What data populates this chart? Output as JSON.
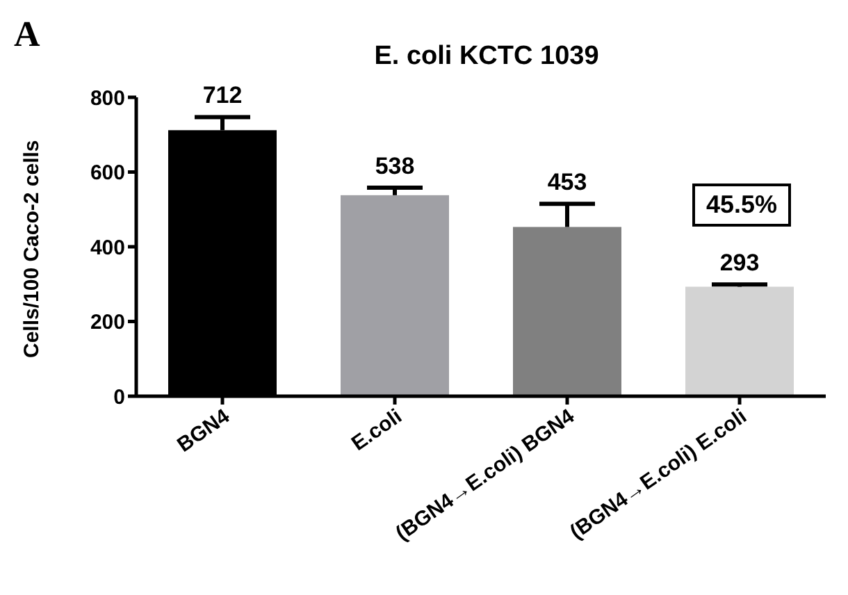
{
  "chart_data": {
    "type": "bar",
    "title": "E. coli KCTC 1039",
    "ylabel": "Cells/100 Caco-2 cells",
    "categories": [
      "BGN4",
      "E.coli",
      "(BGN4→E.coli) BGN4",
      "(BGN4→E.coli) E.coli"
    ],
    "values": [
      712,
      538,
      453,
      293
    ],
    "colors": [
      "#000000",
      "#a0a0a5",
      "#808080",
      "#d3d3d3"
    ],
    "errors": [
      [
        712,
        747
      ],
      [
        538,
        558
      ],
      [
        453,
        515
      ],
      [
        293,
        299
      ]
    ],
    "data_labels": true,
    "ylim": [
      0,
      800
    ],
    "yticks": [
      0,
      200,
      400,
      600,
      800
    ],
    "annotations": [
      "A",
      "45.5%"
    ]
  }
}
